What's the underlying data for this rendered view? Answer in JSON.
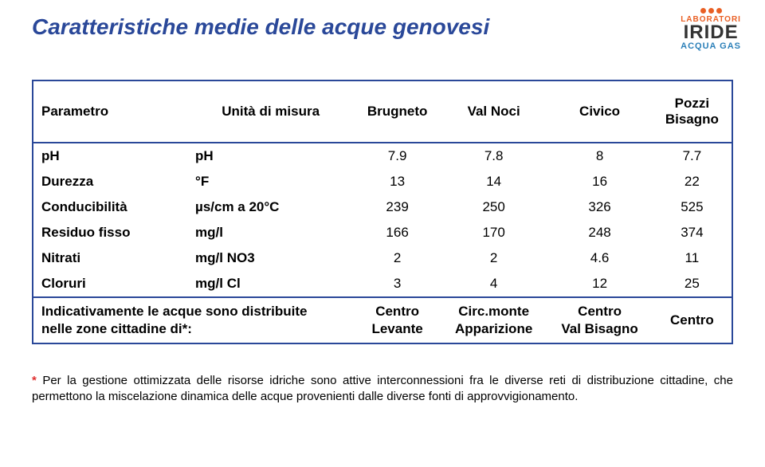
{
  "title": "Caratteristiche medie delle acque genovesi",
  "logo": {
    "top": "LABORATORI",
    "main": "IRIDE",
    "sub": "ACQUA GAS"
  },
  "table": {
    "header": {
      "param": "Parametro",
      "unit": "Unità di misura",
      "c1": "Brugneto",
      "c2": "Val Noci",
      "c3": "Civico",
      "c4_line1": "Pozzi",
      "c4_line2": "Bisagno"
    },
    "rows": [
      {
        "label": "pH",
        "unit": "pH",
        "v": [
          "7.9",
          "7.8",
          "8",
          "7.7"
        ]
      },
      {
        "label": "Durezza",
        "unit": "°F",
        "v": [
          "13",
          "14",
          "16",
          "22"
        ]
      },
      {
        "label": "Conducibilità",
        "unit": "µs/cm a 20°C",
        "v": [
          "239",
          "250",
          "326",
          "525"
        ]
      },
      {
        "label": "Residuo fisso",
        "unit": "mg/l",
        "v": [
          "166",
          "170",
          "248",
          "374"
        ]
      },
      {
        "label": "Nitrati",
        "unit": "mg/l NO3",
        "v": [
          "2",
          "2",
          "4.6",
          "11"
        ]
      },
      {
        "label": "Cloruri",
        "unit": "mg/l Cl",
        "v": [
          "3",
          "4",
          "12",
          "25"
        ]
      }
    ],
    "dist": {
      "label_line1": "Indicativamente le acque sono distribuite",
      "label_line2": "nelle zone cittadine di*:",
      "c1_line1": "Centro",
      "c1_line2": "Levante",
      "c2_line1": "Circ.monte",
      "c2_line2": "Apparizione",
      "c3_line1": "Centro",
      "c3_line2": "Val Bisagno",
      "c4": "Centro"
    }
  },
  "footnote": {
    "text": "Per la gestione ottimizzata delle risorse idriche sono attive interconnessioni fra le diverse reti di distribuzione cittadine, che permettono la miscelazione dinamica delle acque provenienti dalle diverse fonti di approvvigionamento."
  },
  "colors": {
    "title": "#2a4899",
    "border": "#2a4899",
    "logo_orange": "#e95f24",
    "logo_blue": "#2a7fb8",
    "star": "#e03030"
  }
}
